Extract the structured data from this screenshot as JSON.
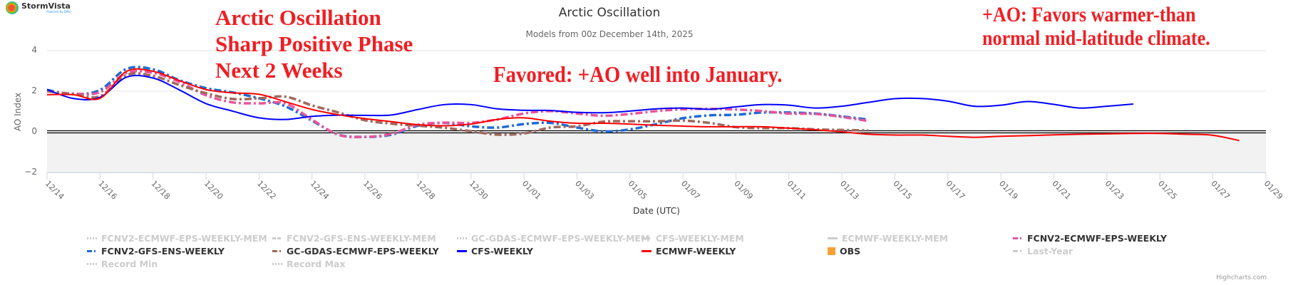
{
  "logo": {
    "name": "StormVista",
    "tagline": "Powered By DMS"
  },
  "annotations": {
    "headline": [
      "Arctic Oscillation",
      "Sharp Positive Phase",
      "Next 2 Weeks"
    ],
    "favored": "Favored: +AO well into January.",
    "impact": [
      "+AO: Favors warmer-than",
      "normal mid-latitude climate."
    ]
  },
  "credits": "Highcharts.com",
  "chart_data": {
    "type": "line",
    "title": "Arctic Oscillation",
    "subtitle": "Models from 00z December 14th, 2025",
    "xlabel": "Date (UTC)",
    "ylabel": "AO Index",
    "ylim": [
      -2,
      4
    ],
    "yticks": [
      "4",
      "2",
      "0",
      "−2"
    ],
    "ytick_values": [
      4,
      2,
      0,
      -2
    ],
    "x_start": "12/14",
    "xticks": [
      "12/14",
      "12/16",
      "12/18",
      "12/20",
      "12/22",
      "12/24",
      "12/26",
      "12/28",
      "12/30",
      "01/01",
      "01/03",
      "01/05",
      "01/07",
      "01/09",
      "01/11",
      "01/13",
      "01/15",
      "01/17",
      "01/19",
      "01/21",
      "01/23",
      "01/25",
      "01/27",
      "01/29"
    ],
    "x_unit": "days since 12/14",
    "negative_band": [
      -2,
      0
    ],
    "series": [
      {
        "name": "FCNV2-GFS-ENS-WEEKLY",
        "color": "#1f6ad4",
        "dash": "dashdot",
        "x_start": 0,
        "values": [
          2.06,
          1.85,
          2.06,
          3.1,
          3.08,
          2.54,
          2.15,
          1.94,
          1.65,
          1.25,
          0.55,
          -0.14,
          -0.25,
          -0.14,
          0.3,
          0.44,
          0.27,
          0.21,
          0.38,
          0.44,
          0.21,
          0.02,
          0.12,
          0.38,
          0.67,
          0.81,
          0.84,
          0.95,
          0.95,
          0.9,
          0.76,
          0.6
        ]
      },
      {
        "name": "FCNV2-ECMWF-EPS-WEEKLY",
        "color": "#e8559b",
        "dash": "dashdot",
        "x_start": 0,
        "values": [
          2.0,
          1.88,
          1.95,
          2.9,
          2.9,
          2.45,
          1.8,
          1.45,
          1.4,
          1.4,
          0.6,
          -0.15,
          -0.25,
          -0.1,
          0.35,
          0.45,
          0.44,
          0.61,
          0.9,
          1.02,
          0.9,
          0.79,
          0.88,
          1.02,
          1.11,
          1.13,
          1.1,
          1.02,
          0.9,
          0.88,
          0.73,
          0.53
        ]
      },
      {
        "name": "GC-GDAS-ECMWF-EPS-WEEKLY",
        "color": "#a0685c",
        "dash": "dashdot",
        "x_start": 0,
        "values": [
          2.0,
          1.85,
          1.75,
          2.8,
          2.75,
          2.3,
          1.9,
          1.62,
          1.65,
          1.73,
          1.3,
          0.95,
          0.57,
          0.4,
          0.3,
          0.2,
          0.03,
          -0.14,
          -0.08,
          0.21,
          0.27,
          0.5,
          0.52,
          0.52,
          0.55,
          0.44,
          0.23,
          0.18,
          0.18,
          0.12,
          0.09,
          0.07
        ]
      },
      {
        "name": "CFS-WEEKLY",
        "color": "#0000ff",
        "dash": "solid",
        "x_start": 0,
        "values": [
          2.08,
          1.64,
          1.7,
          2.69,
          2.65,
          2.06,
          1.39,
          1.02,
          0.69,
          0.61,
          0.76,
          0.82,
          0.81,
          0.83,
          1.1,
          1.34,
          1.34,
          1.13,
          1.06,
          1.05,
          0.96,
          0.94,
          1.02,
          1.13,
          1.17,
          1.11,
          1.23,
          1.34,
          1.31,
          1.17,
          1.26,
          1.45,
          1.63,
          1.64,
          1.51,
          1.26,
          1.31,
          1.49,
          1.35,
          1.17,
          1.26,
          1.37
        ]
      },
      {
        "name": "ECMWF-WEEKLY",
        "color": "#ff0000",
        "dash": "solid",
        "x_start": 0,
        "values": [
          1.83,
          1.83,
          1.65,
          2.98,
          2.98,
          2.52,
          2.08,
          1.92,
          1.85,
          1.48,
          1.1,
          0.84,
          0.65,
          0.5,
          0.35,
          0.3,
          0.38,
          0.61,
          0.69,
          0.52,
          0.42,
          0.42,
          0.38,
          0.32,
          0.28,
          0.25,
          0.25,
          0.25,
          0.18,
          0.1,
          0.0,
          -0.12,
          -0.16,
          -0.16,
          -0.22,
          -0.27,
          -0.22,
          -0.19,
          -0.15,
          -0.12,
          -0.1,
          -0.08,
          -0.08,
          -0.12,
          -0.17,
          -0.43
        ]
      }
    ],
    "legend": {
      "placement": "bottom",
      "items": [
        {
          "label": "FCNV2-ECMWF-EPS-WEEKLY-MEM",
          "color": "#cccccc",
          "visible": false,
          "style": "dotted"
        },
        {
          "label": "FCNV2-GFS-ENS-WEEKLY-MEM",
          "color": "#cccccc",
          "visible": false,
          "style": "dash"
        },
        {
          "label": "GC-GDAS-ECMWF-EPS-WEEKLY-MEM",
          "color": "#cccccc",
          "visible": false,
          "style": "dotted"
        },
        {
          "label": "CFS-WEEKLY-MEM",
          "color": "#cccccc",
          "visible": false,
          "style": "dash"
        },
        {
          "label": "ECMWF-WEEKLY-MEM",
          "color": "#cccccc",
          "visible": false,
          "style": "solid"
        },
        {
          "label": "FCNV2-ECMWF-EPS-WEEKLY",
          "color": "#e8559b",
          "visible": true,
          "style": "dashdot"
        },
        {
          "label": "FCNV2-GFS-ENS-WEEKLY",
          "color": "#1f6ad4",
          "visible": true,
          "style": "dashdot"
        },
        {
          "label": "GC-GDAS-ECMWF-EPS-WEEKLY",
          "color": "#a0685c",
          "visible": true,
          "style": "dashdot"
        },
        {
          "label": "CFS-WEEKLY",
          "color": "#0000ff",
          "visible": true,
          "style": "solid"
        },
        {
          "label": "ECMWF-WEEKLY",
          "color": "#ff0000",
          "visible": true,
          "style": "solid"
        },
        {
          "label": "OBS",
          "color": "#f7a035",
          "visible": true,
          "style": "square"
        },
        {
          "label": "Last-Year",
          "color": "#cccccc",
          "visible": false,
          "style": "dashdot"
        },
        {
          "label": "Record Min",
          "color": "#cccccc",
          "visible": false,
          "style": "dotted"
        },
        {
          "label": "Record Max",
          "color": "#cccccc",
          "visible": false,
          "style": "dotted"
        }
      ]
    }
  }
}
